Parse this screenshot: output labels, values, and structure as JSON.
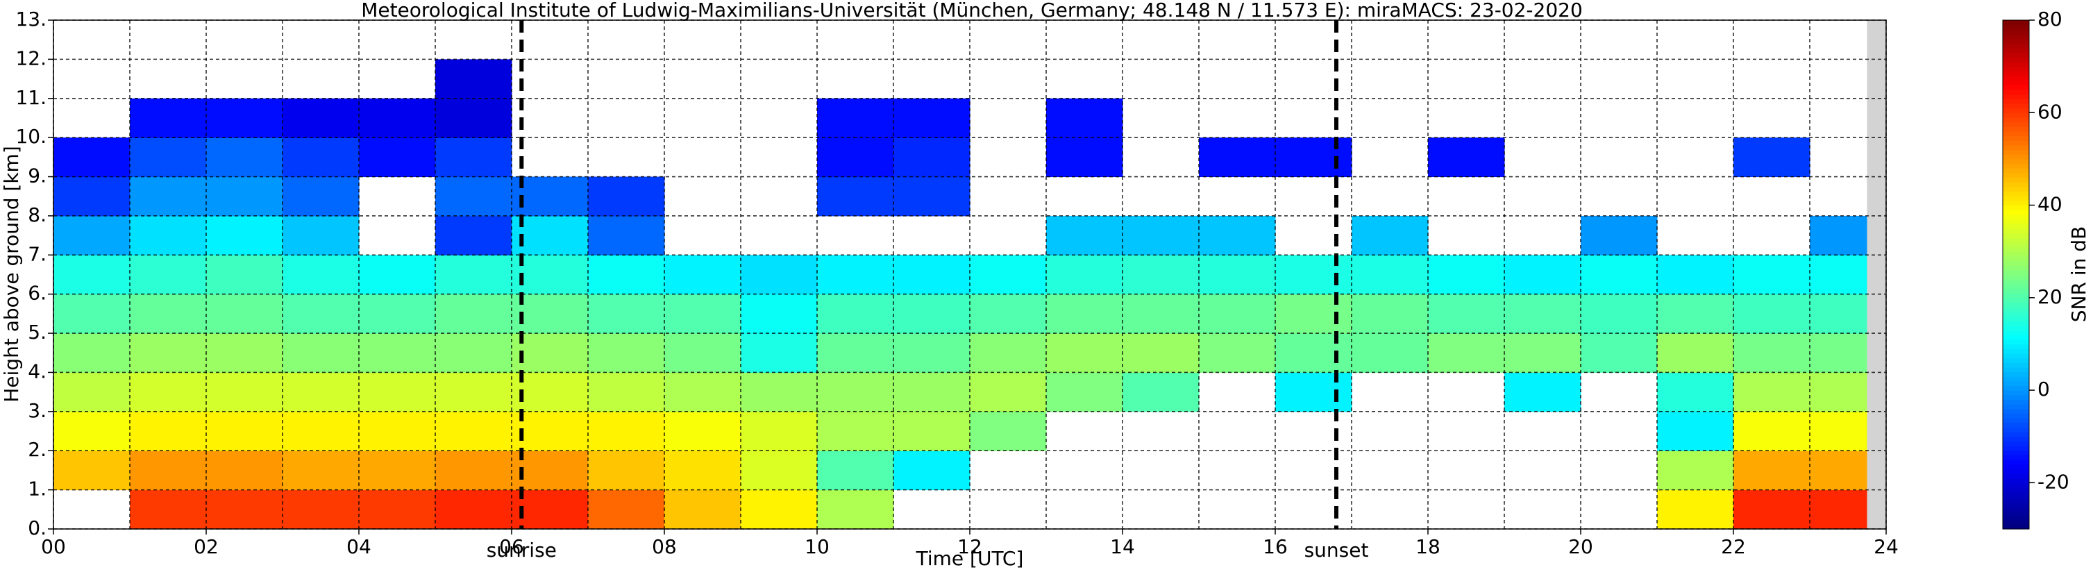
{
  "chart_data": {
    "type": "heatmap",
    "title": "Meteorological Institute of Ludwig-Maximilians-Universität (München, Germany; 48.148 N / 11.573 E):    miraMACS: 23-02-2020",
    "xlabel": "Time [UTC]",
    "ylabel": "Height above ground [km]",
    "colorbar_label": "SNR in dB",
    "colormap": "jet",
    "xlim": [
      0,
      24
    ],
    "ylim": [
      0,
      13
    ],
    "clim": [
      -30,
      80
    ],
    "xticks": [
      {
        "value": 0,
        "label": "00"
      },
      {
        "value": 2,
        "label": "02"
      },
      {
        "value": 4,
        "label": "04"
      },
      {
        "value": 6,
        "label": "06"
      },
      {
        "value": 8,
        "label": "08"
      },
      {
        "value": 10,
        "label": "10"
      },
      {
        "value": 12,
        "label": "12"
      },
      {
        "value": 14,
        "label": "14"
      },
      {
        "value": 16,
        "label": "16"
      },
      {
        "value": 18,
        "label": "18"
      },
      {
        "value": 20,
        "label": "20"
      },
      {
        "value": 22,
        "label": "22"
      },
      {
        "value": 24,
        "label": "24"
      }
    ],
    "yticks": [
      {
        "value": 0,
        "label": "0."
      },
      {
        "value": 1,
        "label": "1."
      },
      {
        "value": 2,
        "label": "2."
      },
      {
        "value": 3,
        "label": "3."
      },
      {
        "value": 4,
        "label": "4."
      },
      {
        "value": 5,
        "label": "5."
      },
      {
        "value": 6,
        "label": "6."
      },
      {
        "value": 7,
        "label": "7."
      },
      {
        "value": 8,
        "label": "8."
      },
      {
        "value": 9,
        "label": "9."
      },
      {
        "value": 10,
        "label": "10."
      },
      {
        "value": 11,
        "label": "11."
      },
      {
        "value": 12,
        "label": "12."
      },
      {
        "value": 13,
        "label": "13."
      }
    ],
    "xgrid": [
      0,
      1,
      2,
      3,
      4,
      5,
      6,
      7,
      8,
      9,
      10,
      11,
      12,
      13,
      14,
      15,
      16,
      17,
      18,
      19,
      20,
      21,
      22,
      23,
      24
    ],
    "cticks": [
      -20,
      0,
      20,
      40,
      60,
      80
    ],
    "grid": true,
    "no_data_color": "#d3d3d3",
    "no_data_span": [
      23.75,
      24
    ],
    "annotations": [
      {
        "label": "sunrise",
        "x": 6.13
      },
      {
        "label": "sunset",
        "x": 16.8
      }
    ],
    "x_bins": [
      0,
      1,
      2,
      3,
      4,
      5,
      6,
      7,
      8,
      9,
      10,
      11,
      12,
      13,
      14,
      15,
      16,
      17,
      18,
      19,
      20,
      21,
      22,
      23,
      23.75
    ],
    "y_bins": [
      0,
      1,
      2,
      3,
      4,
      5,
      6,
      7,
      8,
      9,
      10,
      11,
      12,
      13
    ],
    "values": [
      [
        null,
        45,
        38,
        32,
        26,
        20,
        14,
        2,
        -10,
        -15,
        null,
        null,
        null
      ],
      [
        60,
        50,
        40,
        34,
        28,
        22,
        16,
        8,
        0,
        -8,
        -15,
        null,
        null
      ],
      [
        60,
        50,
        40,
        34,
        28,
        22,
        18,
        10,
        0,
        -5,
        -15,
        null,
        null
      ],
      [
        60,
        48,
        40,
        34,
        26,
        20,
        14,
        5,
        -5,
        -10,
        -18,
        null,
        null
      ],
      [
        60,
        48,
        40,
        34,
        26,
        20,
        12,
        null,
        null,
        -15,
        -18,
        null,
        null
      ],
      [
        62,
        50,
        40,
        34,
        26,
        22,
        15,
        -10,
        -5,
        -10,
        -20,
        -20,
        null
      ],
      [
        62,
        50,
        40,
        34,
        28,
        22,
        15,
        8,
        -5,
        null,
        null,
        null,
        null
      ],
      [
        55,
        45,
        40,
        32,
        26,
        20,
        12,
        -5,
        -10,
        null,
        null,
        null,
        null
      ],
      [
        45,
        42,
        38,
        30,
        24,
        20,
        10,
        null,
        null,
        null,
        null,
        null,
        null
      ],
      [
        40,
        35,
        35,
        28,
        14,
        12,
        8,
        null,
        null,
        null,
        null,
        null,
        null
      ],
      [
        30,
        20,
        30,
        28,
        22,
        18,
        10,
        null,
        -10,
        -15,
        -15,
        null,
        null
      ],
      [
        null,
        10,
        30,
        28,
        22,
        18,
        10,
        null,
        -10,
        -12,
        -15,
        null,
        null
      ],
      [
        null,
        null,
        25,
        30,
        26,
        20,
        12,
        null,
        null,
        null,
        null,
        null,
        null
      ],
      [
        null,
        null,
        null,
        25,
        28,
        22,
        15,
        5,
        null,
        -15,
        -15,
        null,
        null
      ],
      [
        null,
        null,
        null,
        20,
        28,
        22,
        16,
        5,
        null,
        null,
        null,
        null,
        null
      ],
      [
        null,
        null,
        null,
        null,
        25,
        22,
        15,
        5,
        null,
        -15,
        null,
        null,
        null
      ],
      [
        null,
        null,
        null,
        10,
        22,
        24,
        14,
        null,
        null,
        -15,
        null,
        null,
        null
      ],
      [
        null,
        null,
        null,
        null,
        22,
        22,
        14,
        5,
        null,
        null,
        null,
        null,
        null
      ],
      [
        null,
        null,
        null,
        null,
        25,
        20,
        12,
        null,
        null,
        -15,
        null,
        null,
        null
      ],
      [
        null,
        null,
        null,
        10,
        25,
        20,
        10,
        null,
        null,
        null,
        null,
        null,
        null
      ],
      [
        null,
        null,
        null,
        null,
        20,
        18,
        12,
        0,
        null,
        null,
        null,
        null,
        null
      ],
      [
        40,
        30,
        10,
        15,
        28,
        20,
        10,
        null,
        null,
        null,
        null,
        null,
        null
      ],
      [
        62,
        48,
        38,
        30,
        24,
        18,
        12,
        null,
        null,
        -10,
        null,
        null,
        null
      ],
      [
        62,
        48,
        38,
        30,
        24,
        18,
        12,
        0,
        null,
        null,
        null,
        null,
        null
      ]
    ]
  }
}
